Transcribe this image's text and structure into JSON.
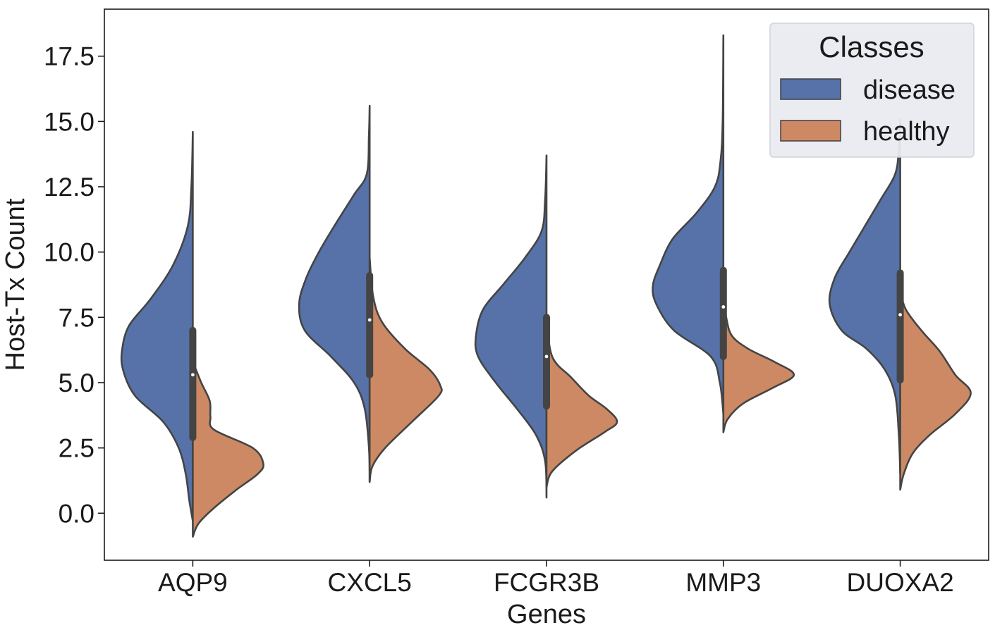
{
  "chart_data": {
    "type": "violin",
    "split": true,
    "xlabel": "Genes",
    "ylabel": "Host-Tx Count",
    "ylim": [
      -1.8,
      19.3
    ],
    "yticks": [
      0.0,
      2.5,
      5.0,
      7.5,
      10.0,
      12.5,
      15.0,
      17.5
    ],
    "ytick_labels": [
      "0.0",
      "2.5",
      "5.0",
      "7.5",
      "10.0",
      "12.5",
      "15.0",
      "17.5"
    ],
    "categories": [
      "AQP9",
      "CXCL5",
      "FCGR3B",
      "MMP3",
      "DUOXA2"
    ],
    "legend": {
      "title": "Classes",
      "position": "top-right",
      "entries": [
        {
          "label": "disease",
          "color": "#5672a8"
        },
        {
          "label": "healthy",
          "color": "#cd8963"
        }
      ]
    },
    "series": [
      {
        "name": "disease",
        "color": "#5672a8",
        "violins": [
          {
            "min": -0.3,
            "max": 14.6,
            "profile": [
              [
                -0.3,
                0.0
              ],
              [
                0.5,
                0.05
              ],
              [
                1.5,
                0.1
              ],
              [
                2.5,
                0.2
              ],
              [
                3.5,
                0.42
              ],
              [
                4.5,
                0.82
              ],
              [
                5.5,
                0.99
              ],
              [
                6.3,
                1.0
              ],
              [
                7.2,
                0.9
              ],
              [
                8.2,
                0.6
              ],
              [
                9.5,
                0.28
              ],
              [
                11.0,
                0.07
              ],
              [
                12.5,
                0.02
              ],
              [
                14.6,
                0.0
              ]
            ]
          },
          {
            "min": 1.2,
            "max": 15.6,
            "profile": [
              [
                1.2,
                0.0
              ],
              [
                2.5,
                0.01
              ],
              [
                4.0,
                0.07
              ],
              [
                5.0,
                0.22
              ],
              [
                6.0,
                0.55
              ],
              [
                7.0,
                0.92
              ],
              [
                8.0,
                1.0
              ],
              [
                9.0,
                0.9
              ],
              [
                10.0,
                0.72
              ],
              [
                11.0,
                0.5
              ],
              [
                12.2,
                0.22
              ],
              [
                13.0,
                0.04
              ],
              [
                14.5,
                0.01
              ],
              [
                15.6,
                0.0
              ]
            ]
          },
          {
            "min": 0.6,
            "max": 13.7,
            "profile": [
              [
                0.6,
                0.0
              ],
              [
                2.0,
                0.02
              ],
              [
                3.0,
                0.15
              ],
              [
                4.0,
                0.42
              ],
              [
                5.0,
                0.72
              ],
              [
                6.0,
                0.97
              ],
              [
                6.8,
                1.0
              ],
              [
                7.8,
                0.9
              ],
              [
                8.8,
                0.6
              ],
              [
                9.8,
                0.3
              ],
              [
                10.8,
                0.07
              ],
              [
                12.0,
                0.02
              ],
              [
                13.7,
                0.0
              ]
            ]
          },
          {
            "min": 3.8,
            "max": 18.3,
            "profile": [
              [
                3.8,
                0.0
              ],
              [
                5.0,
                0.05
              ],
              [
                6.0,
                0.18
              ],
              [
                7.0,
                0.7
              ],
              [
                8.0,
                0.95
              ],
              [
                8.7,
                1.0
              ],
              [
                9.5,
                0.9
              ],
              [
                10.5,
                0.72
              ],
              [
                11.5,
                0.38
              ],
              [
                12.5,
                0.12
              ],
              [
                13.5,
                0.04
              ],
              [
                15.0,
                0.01
              ],
              [
                18.3,
                0.0
              ]
            ]
          },
          {
            "min": 1.5,
            "max": 15.1,
            "profile": [
              [
                1.5,
                0.0
              ],
              [
                3.0,
                0.02
              ],
              [
                4.5,
                0.07
              ],
              [
                5.5,
                0.22
              ],
              [
                6.3,
                0.48
              ],
              [
                7.0,
                0.83
              ],
              [
                8.0,
                1.0
              ],
              [
                9.0,
                0.93
              ],
              [
                10.0,
                0.72
              ],
              [
                11.0,
                0.5
              ],
              [
                12.0,
                0.28
              ],
              [
                13.0,
                0.07
              ],
              [
                14.0,
                0.02
              ],
              [
                15.1,
                0.0
              ]
            ]
          }
        ]
      },
      {
        "name": "healthy",
        "color": "#cd8963",
        "violins": [
          {
            "min": -0.9,
            "max": 5.8,
            "profile": [
              [
                -0.9,
                0.0
              ],
              [
                -0.4,
                0.08
              ],
              [
                0.2,
                0.3
              ],
              [
                0.9,
                0.62
              ],
              [
                1.5,
                0.92
              ],
              [
                1.9,
                1.0
              ],
              [
                2.5,
                0.85
              ],
              [
                3.2,
                0.3
              ],
              [
                3.7,
                0.25
              ],
              [
                4.3,
                0.24
              ],
              [
                5.0,
                0.12
              ],
              [
                5.8,
                0.0
              ]
            ]
          },
          {
            "min": 1.2,
            "max": 9.8,
            "profile": [
              [
                1.2,
                0.0
              ],
              [
                1.8,
                0.04
              ],
              [
                2.5,
                0.22
              ],
              [
                3.5,
                0.6
              ],
              [
                4.5,
                0.98
              ],
              [
                4.9,
                1.0
              ],
              [
                5.5,
                0.85
              ],
              [
                6.3,
                0.5
              ],
              [
                7.3,
                0.18
              ],
              [
                8.3,
                0.05
              ],
              [
                9.8,
                0.0
              ]
            ]
          },
          {
            "min": 1.0,
            "max": 7.5,
            "profile": [
              [
                1.0,
                0.0
              ],
              [
                1.6,
                0.08
              ],
              [
                2.4,
                0.42
              ],
              [
                3.1,
                0.82
              ],
              [
                3.5,
                1.0
              ],
              [
                4.0,
                0.85
              ],
              [
                4.5,
                0.6
              ],
              [
                5.2,
                0.35
              ],
              [
                6.0,
                0.08
              ],
              [
                7.5,
                0.0
              ]
            ]
          },
          {
            "min": 3.1,
            "max": 8.2,
            "profile": [
              [
                3.1,
                0.0
              ],
              [
                3.6,
                0.06
              ],
              [
                4.2,
                0.28
              ],
              [
                4.8,
                0.7
              ],
              [
                5.3,
                1.0
              ],
              [
                5.8,
                0.72
              ],
              [
                6.3,
                0.35
              ],
              [
                6.8,
                0.12
              ],
              [
                7.5,
                0.04
              ],
              [
                8.2,
                0.0
              ]
            ]
          },
          {
            "min": 0.9,
            "max": 8.5,
            "profile": [
              [
                0.9,
                0.0
              ],
              [
                1.5,
                0.05
              ],
              [
                2.3,
                0.18
              ],
              [
                3.0,
                0.42
              ],
              [
                3.8,
                0.78
              ],
              [
                4.6,
                1.0
              ],
              [
                5.3,
                0.78
              ],
              [
                6.2,
                0.56
              ],
              [
                7.0,
                0.3
              ],
              [
                7.8,
                0.08
              ],
              [
                8.5,
                0.0
              ]
            ]
          }
        ]
      }
    ],
    "box": [
      {
        "q1": 2.9,
        "q3": 7.0,
        "median": 5.3
      },
      {
        "q1": 5.3,
        "q3": 9.1,
        "median": 7.4
      },
      {
        "q1": 4.1,
        "q3": 7.5,
        "median": 6.0
      },
      {
        "q1": 6.0,
        "q3": 9.3,
        "median": 7.9
      },
      {
        "q1": 5.1,
        "q3": 9.2,
        "median": 7.6
      }
    ]
  }
}
